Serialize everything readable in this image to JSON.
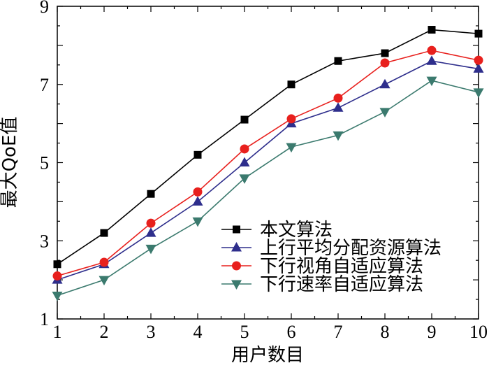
{
  "chart_data": {
    "type": "line",
    "title": "",
    "xlabel": "用户数目",
    "ylabel": "最大QoE值",
    "x": [
      1,
      2,
      3,
      4,
      5,
      6,
      7,
      8,
      9,
      10
    ],
    "xlim": [
      1,
      10
    ],
    "ylim": [
      1,
      9
    ],
    "xticks": [
      "1",
      "2",
      "3",
      "4",
      "5",
      "6",
      "7",
      "8",
      "9",
      "10"
    ],
    "yticks": [
      "1",
      "3",
      "5",
      "7",
      "9"
    ],
    "grid": false,
    "legend_position": "bottom-right",
    "series": [
      {
        "name": "本文算法",
        "color": "#000000",
        "marker": "square",
        "values": [
          2.4,
          3.2,
          4.2,
          5.2,
          6.1,
          7.0,
          7.6,
          7.8,
          8.4,
          8.3
        ]
      },
      {
        "name": "上行平均分配资源算法",
        "color": "#2e2e8c",
        "marker": "triangle-up",
        "values": [
          2.0,
          2.4,
          3.2,
          4.0,
          5.0,
          6.0,
          6.4,
          7.0,
          7.6,
          7.4
        ]
      },
      {
        "name": "下行视角自适应算法",
        "color": "#e8201d",
        "marker": "circle",
        "values": [
          2.1,
          2.45,
          3.45,
          4.25,
          5.35,
          6.12,
          6.65,
          7.55,
          7.87,
          7.62
        ]
      },
      {
        "name": "下行速率自适应算法",
        "color": "#3b7a6e",
        "marker": "triangle-down",
        "values": [
          1.6,
          2.0,
          2.8,
          3.5,
          4.6,
          5.4,
          5.7,
          6.3,
          7.1,
          6.8
        ]
      }
    ]
  }
}
